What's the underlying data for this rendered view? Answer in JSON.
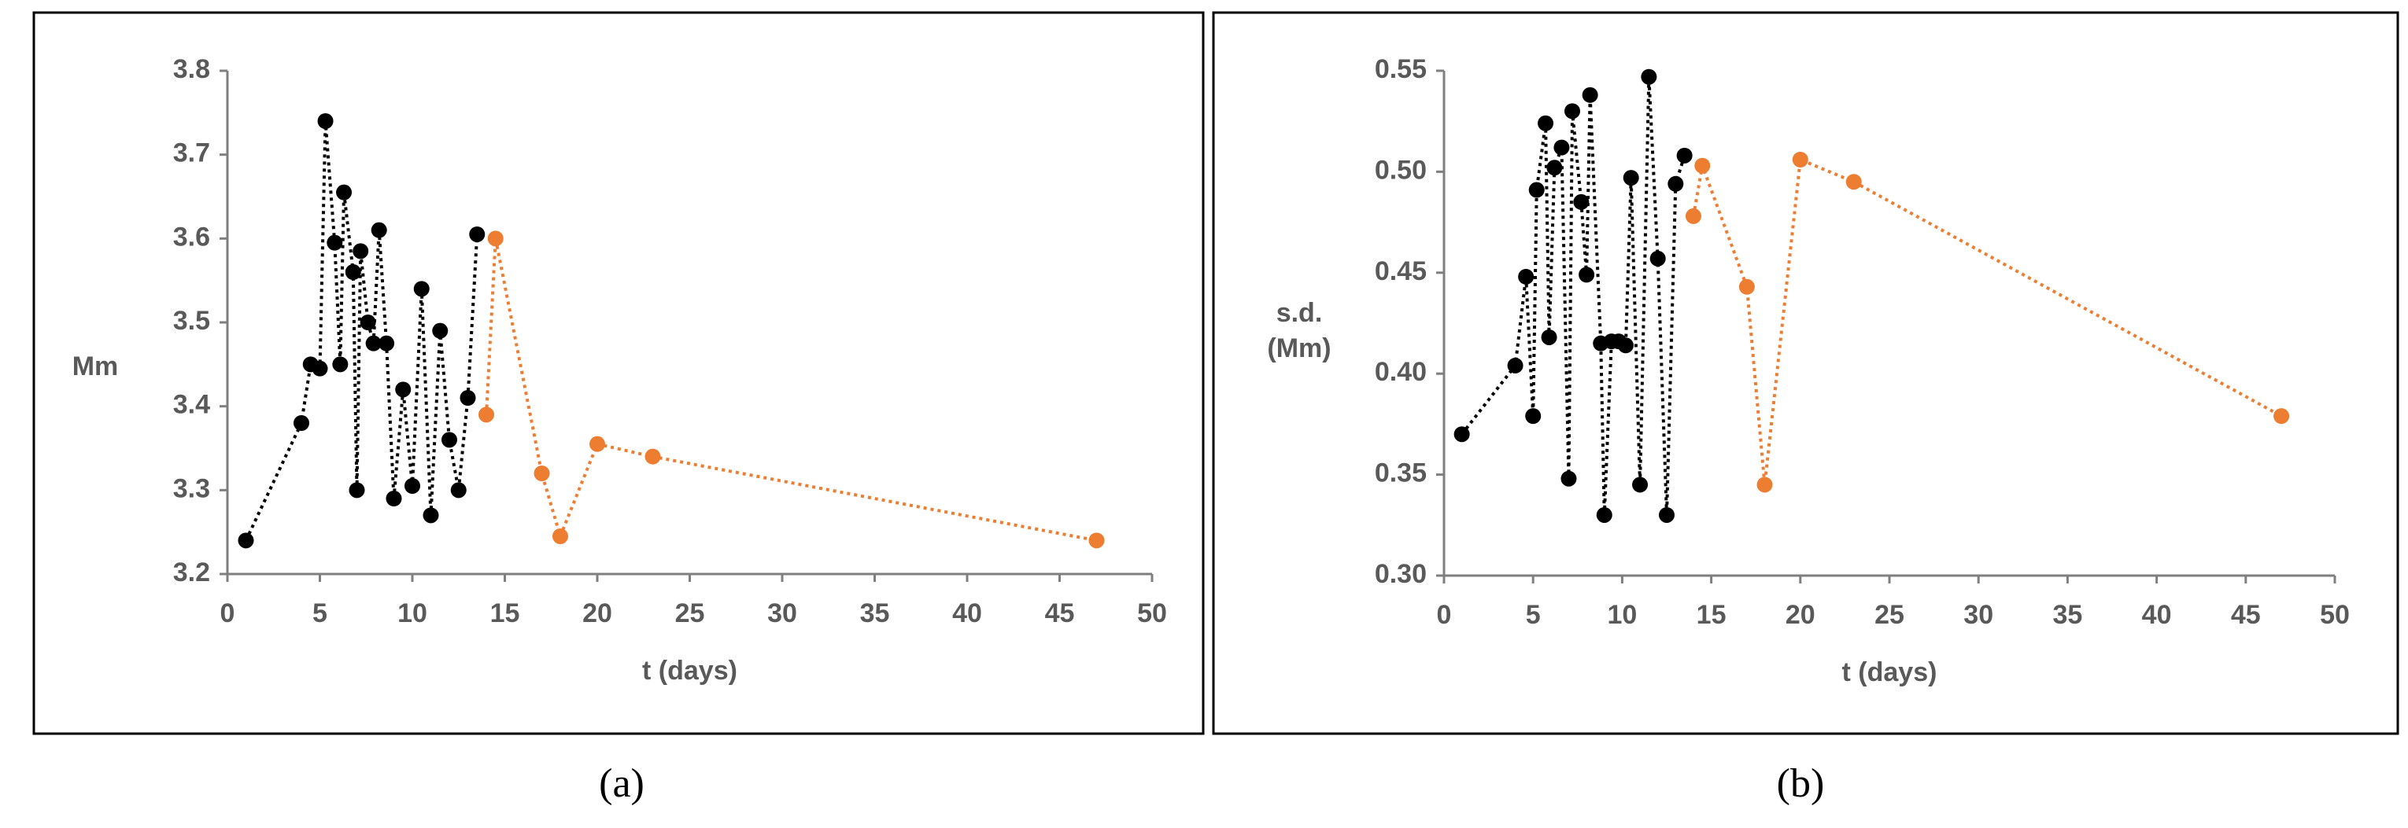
{
  "chart_data": [
    {
      "type": "line",
      "label": "(a)",
      "xlabel": "t (days)",
      "ylabel": [
        "Mm"
      ],
      "xlim": [
        0,
        50
      ],
      "xticks": [
        0,
        5,
        10,
        15,
        20,
        25,
        30,
        35,
        40,
        45,
        50
      ],
      "ylim": [
        3.2,
        3.8
      ],
      "yticks": [
        3.2,
        3.3,
        3.4,
        3.5,
        3.6,
        3.7,
        3.8
      ],
      "series": [
        {
          "color": "#000000",
          "x": [
            1,
            4,
            4.5,
            5,
            5.3,
            5.8,
            6.1,
            6.3,
            6.8,
            7,
            7.2,
            7.6,
            7.9,
            8.2,
            8.6,
            9,
            9.5,
            10,
            10.5,
            11,
            11.5,
            12,
            12.5,
            13,
            13.5
          ],
          "values": [
            3.24,
            3.38,
            3.45,
            3.445,
            3.74,
            3.595,
            3.45,
            3.655,
            3.56,
            3.3,
            3.585,
            3.5,
            3.475,
            3.61,
            3.475,
            3.29,
            3.42,
            3.305,
            3.54,
            3.27,
            3.49,
            3.36,
            3.3,
            3.41,
            3.605
          ]
        },
        {
          "color": "#ed7d31",
          "x": [
            14,
            14.5,
            17,
            18,
            20,
            23,
            47
          ],
          "values": [
            3.39,
            3.6,
            3.32,
            3.245,
            3.355,
            3.34,
            3.24
          ]
        }
      ]
    },
    {
      "type": "line",
      "label": "(b)",
      "xlabel": "t (days)",
      "ylabel": [
        "s.d.",
        "(Mm)"
      ],
      "xlim": [
        0,
        50
      ],
      "xticks": [
        0,
        5,
        10,
        15,
        20,
        25,
        30,
        35,
        40,
        45,
        50
      ],
      "ylim": [
        0.3,
        0.55
      ],
      "yticks": [
        {
          "value": 0.3,
          "label": "0.30"
        },
        0.35,
        {
          "value": 0.4,
          "label": "0.40"
        },
        0.45,
        {
          "value": 0.5,
          "label": "0.50"
        },
        0.55
      ],
      "series": [
        {
          "color": "#000000",
          "x": [
            1,
            4,
            4.6,
            5,
            5.2,
            5.7,
            5.9,
            6.2,
            6.6,
            7,
            7.2,
            7.7,
            8,
            8.2,
            8.8,
            9,
            9.4,
            9.8,
            10.2,
            10.5,
            11,
            11.5,
            12,
            12.5,
            13,
            13.5
          ],
          "values": [
            0.37,
            0.404,
            0.448,
            0.379,
            0.491,
            0.524,
            0.418,
            0.502,
            0.512,
            0.348,
            0.53,
            0.485,
            0.449,
            0.538,
            0.415,
            0.33,
            0.416,
            0.416,
            0.414,
            0.497,
            0.345,
            0.547,
            0.457,
            0.33,
            0.494,
            0.508
          ]
        },
        {
          "color": "#ed7d31",
          "x": [
            14,
            14.5,
            17,
            18,
            20,
            23,
            47
          ],
          "values": [
            0.478,
            0.503,
            0.443,
            0.345,
            0.506,
            0.495,
            0.379
          ]
        }
      ]
    }
  ]
}
